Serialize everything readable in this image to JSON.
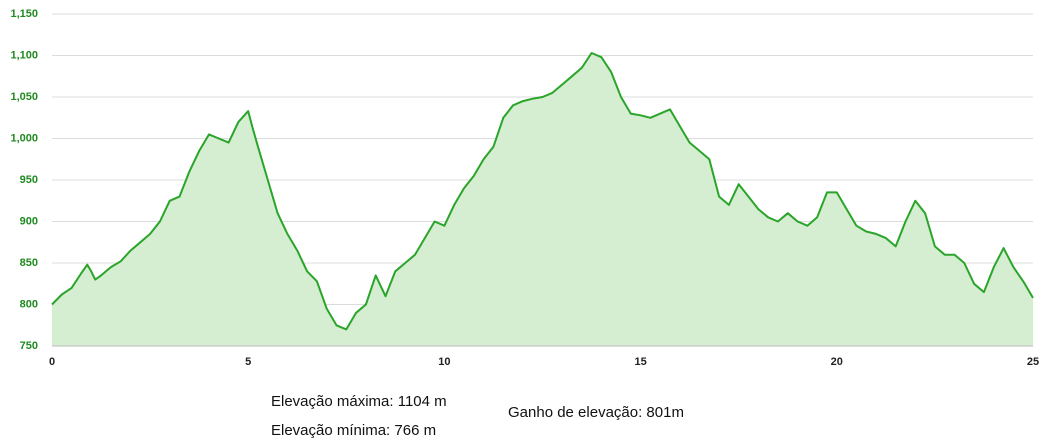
{
  "chart_data": {
    "type": "area",
    "x": [
      0,
      0.25,
      0.5,
      0.75,
      0.9,
      1.0,
      1.1,
      1.25,
      1.5,
      1.75,
      2.0,
      2.25,
      2.5,
      2.75,
      3.0,
      3.25,
      3.5,
      3.75,
      4.0,
      4.25,
      4.5,
      4.75,
      5.0,
      5.1,
      5.25,
      5.5,
      5.75,
      6.0,
      6.25,
      6.5,
      6.75,
      7.0,
      7.25,
      7.5,
      7.75,
      8.0,
      8.25,
      8.5,
      8.75,
      9.0,
      9.25,
      9.5,
      9.75,
      10.0,
      10.25,
      10.5,
      10.75,
      11.0,
      11.25,
      11.5,
      11.75,
      12.0,
      12.25,
      12.5,
      12.75,
      13.0,
      13.25,
      13.5,
      13.75,
      14.0,
      14.25,
      14.5,
      14.75,
      15.0,
      15.25,
      15.5,
      15.75,
      16.0,
      16.25,
      16.5,
      16.75,
      17.0,
      17.25,
      17.5,
      17.75,
      18.0,
      18.25,
      18.5,
      18.75,
      19.0,
      19.25,
      19.5,
      19.75,
      20.0,
      20.25,
      20.5,
      20.75,
      21.0,
      21.25,
      21.5,
      21.75,
      22.0,
      22.25,
      22.5,
      22.75,
      23.0,
      23.25,
      23.5,
      23.75,
      24.0,
      24.25,
      24.5,
      24.75,
      25.0
    ],
    "series": [
      {
        "color": "#2aa52a",
        "fill": "#d5edd1",
        "values": [
          800,
          812,
          820,
          838,
          848,
          840,
          830,
          835,
          845,
          852,
          865,
          875,
          885,
          900,
          925,
          930,
          960,
          985,
          1005,
          1000,
          995,
          1020,
          1033,
          1015,
          990,
          950,
          910,
          885,
          865,
          840,
          828,
          795,
          775,
          770,
          790,
          800,
          835,
          810,
          840,
          850,
          860,
          880,
          900,
          895,
          920,
          940,
          955,
          975,
          990,
          1025,
          1040,
          1045,
          1048,
          1050,
          1055,
          1065,
          1075,
          1085,
          1103,
          1098,
          1080,
          1050,
          1030,
          1028,
          1025,
          1030,
          1035,
          1015,
          995,
          985,
          975,
          930,
          920,
          945,
          930,
          915,
          905,
          900,
          910,
          900,
          895,
          905,
          935,
          935,
          915,
          895,
          888,
          885,
          880,
          870,
          900,
          925,
          910,
          870,
          860,
          860,
          850,
          825,
          815,
          845,
          868,
          845,
          828,
          808
        ]
      }
    ],
    "xlim": [
      0,
      25
    ],
    "xticks": [
      0,
      5,
      10,
      15,
      20,
      25
    ],
    "ylim": [
      750,
      1150
    ],
    "yticks": [
      750,
      800,
      850,
      900,
      950,
      {
        "value": 1000,
        "label": "1,000"
      },
      {
        "value": 1050,
        "label": "1,050"
      },
      {
        "value": 1100,
        "label": "1,100"
      },
      {
        "value": 1150,
        "label": "1,150"
      }
    ],
    "grid": true
  },
  "stats": {
    "max": "Elevação máxima: 1104 m",
    "min": "Elevação mínima: 766 m",
    "gain": "Ganho de elevação: 801m"
  }
}
